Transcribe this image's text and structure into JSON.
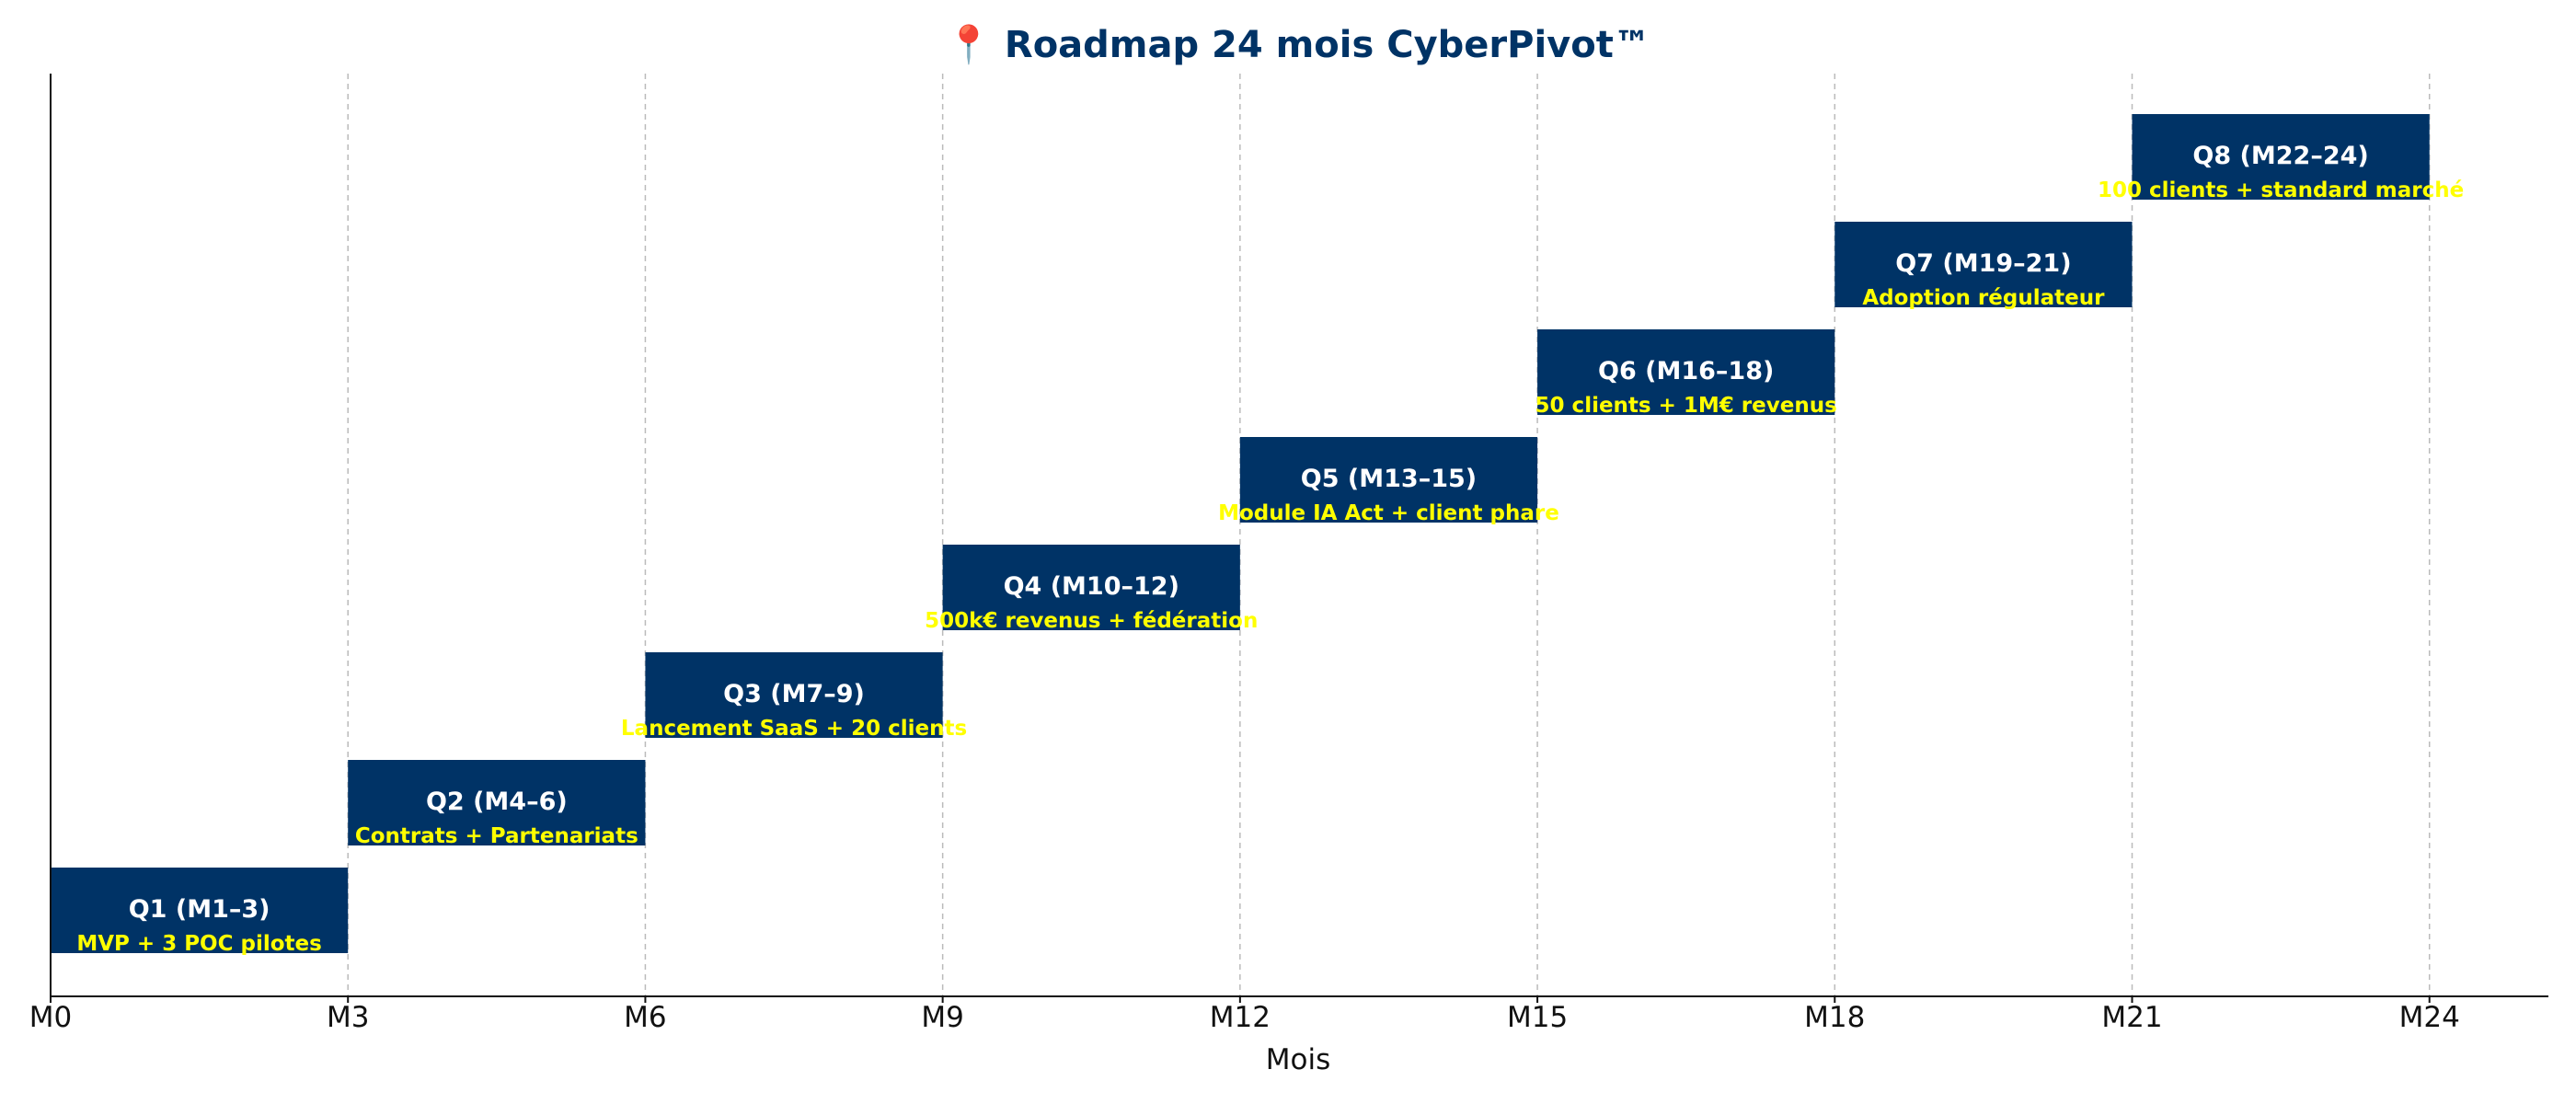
{
  "chart_data": {
    "type": "gantt",
    "title": "📍 Roadmap 24 mois CyberPivot™",
    "xlabel": "Mois",
    "ylabel": "",
    "xlim": [
      0,
      25.2
    ],
    "xticks": [
      0,
      3,
      6,
      9,
      12,
      15,
      18,
      21,
      24
    ],
    "xtick_labels": [
      "M0",
      "M3",
      "M6",
      "M9",
      "M12",
      "M15",
      "M18",
      "M21",
      "M24"
    ],
    "grid": "vertical dashed",
    "colors": {
      "bar": "#003366",
      "bar_label": "#ffffff",
      "milestone_label": "#ffff00",
      "title": "#003366",
      "grid": "#bbbbbb",
      "axis": "#111111"
    },
    "tasks": [
      {
        "label": "Q1 (M1–3)",
        "start": 0,
        "end": 3,
        "milestone": "MVP + 3 POC pilotes"
      },
      {
        "label": "Q2 (M4–6)",
        "start": 3,
        "end": 6,
        "milestone": "Contrats + Partenariats"
      },
      {
        "label": "Q3 (M7–9)",
        "start": 6,
        "end": 9,
        "milestone": "Lancement SaaS + 20 clients"
      },
      {
        "label": "Q4 (M10–12)",
        "start": 9,
        "end": 12,
        "milestone": "500k€ revenus + fédération"
      },
      {
        "label": "Q5 (M13–15)",
        "start": 12,
        "end": 15,
        "milestone": "Module IA Act + client phare"
      },
      {
        "label": "Q6 (M16–18)",
        "start": 15,
        "end": 18,
        "milestone": "50 clients + 1M€ revenus"
      },
      {
        "label": "Q7 (M19–21)",
        "start": 18,
        "end": 21,
        "milestone": "Adoption régulateur"
      },
      {
        "label": "Q8 (M22–24)",
        "start": 21,
        "end": 24,
        "milestone": "100 clients + standard marché"
      }
    ]
  }
}
